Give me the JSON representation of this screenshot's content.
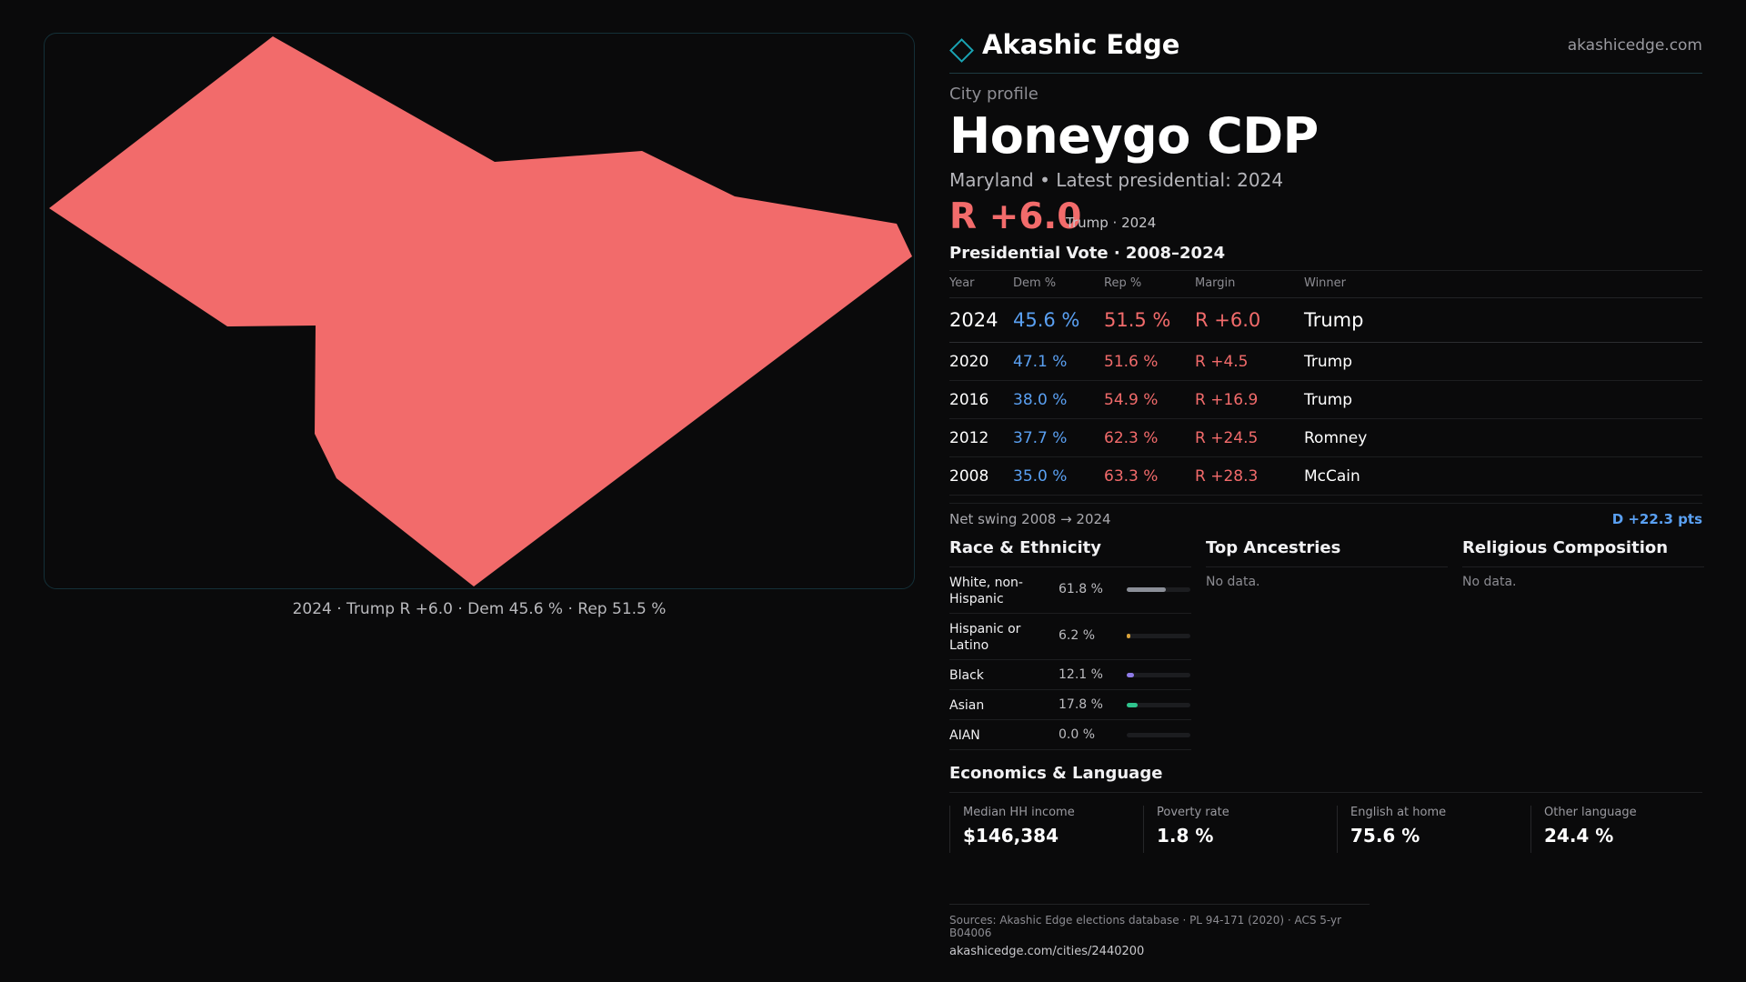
{
  "map": {
    "fill_color": "#f26b6b",
    "caption": "2024 · Trump R +6.0 · Dem 45.6 % · Rep 51.5 %"
  },
  "header": {
    "brand": "Akashic Edge",
    "site": "akashicedge.com"
  },
  "profile": {
    "eyebrow": "City profile",
    "title": "Honeygo CDP",
    "subtitle": "Maryland • Latest presidential: 2024",
    "lead_margin": "R +6.0",
    "lead_note": "Trump · 2024"
  },
  "presidential": {
    "title": "Presidential Vote · 2008–2024",
    "columns": [
      "Year",
      "Dem %",
      "Rep %",
      "Margin",
      "Winner"
    ],
    "rows": [
      {
        "year": "2024",
        "dem": "45.6 %",
        "rep": "51.5 %",
        "margin": "R +6.0",
        "winner": "Trump"
      },
      {
        "year": "2020",
        "dem": "47.1 %",
        "rep": "51.6 %",
        "margin": "R +4.5",
        "winner": "Trump"
      },
      {
        "year": "2016",
        "dem": "38.0 %",
        "rep": "54.9 %",
        "margin": "R +16.9",
        "winner": "Trump"
      },
      {
        "year": "2012",
        "dem": "37.7 %",
        "rep": "62.3 %",
        "margin": "R +24.5",
        "winner": "Romney"
      },
      {
        "year": "2008",
        "dem": "35.0 %",
        "rep": "63.3 %",
        "margin": "R +28.3",
        "winner": "McCain"
      }
    ],
    "swing_label": "Net swing 2008 → 2024",
    "swing_value": "D +22.3 pts"
  },
  "race": {
    "title": "Race & Ethnicity",
    "rows": [
      {
        "name": "White, non-Hispanic",
        "pct": "61.8 %",
        "value": 61.8,
        "color": "#8b8f98"
      },
      {
        "name": "Hispanic or Latino",
        "pct": "6.2 %",
        "value": 6.2,
        "color": "#d9a23a"
      },
      {
        "name": "Black",
        "pct": "12.1 %",
        "value": 12.1,
        "color": "#8f7be8"
      },
      {
        "name": "Asian",
        "pct": "17.8 %",
        "value": 17.8,
        "color": "#2fc48d"
      },
      {
        "name": "AIAN",
        "pct": "0.0 %",
        "value": 0.0,
        "color": "#8b8f98"
      }
    ]
  },
  "ancestries": {
    "title": "Top Ancestries",
    "empty": "No data."
  },
  "religion": {
    "title": "Religious Composition",
    "empty": "No data."
  },
  "economics": {
    "title": "Economics & Language",
    "stats": [
      {
        "label": "Median HH income",
        "value": "$146,384"
      },
      {
        "label": "Poverty rate",
        "value": "1.8 %"
      },
      {
        "label": "English at home",
        "value": "75.6 %"
      },
      {
        "label": "Other language",
        "value": "24.4 %"
      }
    ]
  },
  "sources": {
    "line": "Sources: Akashic Edge elections database · PL 94-171 (2020) · ACS 5-yr B04006",
    "url": "akashicedge.com/cities/2440200"
  }
}
